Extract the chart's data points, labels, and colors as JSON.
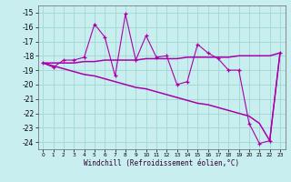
{
  "xlabel": "Windchill (Refroidissement éolien,°C)",
  "background_color": "#c8eef0",
  "grid_color": "#a0d8d0",
  "line_color": "#aa00aa",
  "x": [
    0,
    1,
    2,
    3,
    4,
    5,
    6,
    7,
    8,
    9,
    10,
    11,
    12,
    13,
    14,
    15,
    16,
    17,
    18,
    19,
    20,
    21,
    22,
    23
  ],
  "y_main": [
    -18.5,
    -18.8,
    -18.3,
    -18.3,
    -18.1,
    -15.8,
    -16.7,
    -19.4,
    -15.1,
    -18.3,
    -16.6,
    -18.1,
    -18.0,
    -20.0,
    -19.8,
    -17.2,
    -17.8,
    -18.2,
    -19.0,
    -19.0,
    -22.7,
    -24.1,
    -23.9,
    -17.8
  ],
  "y_smooth": [
    -18.5,
    -18.5,
    -18.5,
    -18.5,
    -18.4,
    -18.4,
    -18.3,
    -18.3,
    -18.3,
    -18.3,
    -18.2,
    -18.2,
    -18.2,
    -18.2,
    -18.1,
    -18.1,
    -18.1,
    -18.1,
    -18.1,
    -18.0,
    -18.0,
    -18.0,
    -18.0,
    -17.8
  ],
  "y_trend": [
    -18.5,
    -18.7,
    -18.9,
    -19.1,
    -19.3,
    -19.4,
    -19.6,
    -19.8,
    -20.0,
    -20.2,
    -20.3,
    -20.5,
    -20.7,
    -20.9,
    -21.1,
    -21.3,
    -21.4,
    -21.6,
    -21.8,
    -22.0,
    -22.2,
    -22.7,
    -23.9,
    -17.8
  ],
  "ylim": [
    -24.5,
    -14.5
  ],
  "yticks": [
    -24,
    -23,
    -22,
    -21,
    -20,
    -19,
    -18,
    -17,
    -16,
    -15
  ],
  "xticks": [
    0,
    1,
    2,
    3,
    4,
    5,
    6,
    7,
    8,
    9,
    10,
    11,
    12,
    13,
    14,
    15,
    16,
    17,
    18,
    19,
    20,
    21,
    22,
    23
  ],
  "xticklabels": [
    "0",
    "1",
    "2",
    "3",
    "4",
    "5",
    "6",
    "7",
    "8",
    "9",
    "10",
    "11",
    "12",
    "13",
    "14",
    "15",
    "16",
    "17",
    "18",
    "19",
    "20",
    "21",
    "22",
    "23"
  ]
}
